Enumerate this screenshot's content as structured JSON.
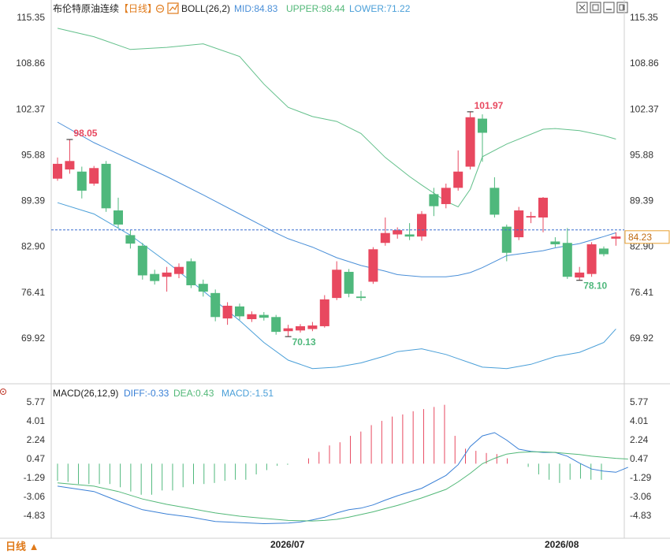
{
  "header": {
    "title": "布伦特原油连续",
    "period": "【日线】",
    "boll_label": "BOLL(26,2)",
    "mid_label": "MID:84.83",
    "upper_label": "UPPER:98.44",
    "lower_label": "LOWER:71.22"
  },
  "toolbar": {
    "icons": [
      "expand-icon",
      "window-icon",
      "minimize-icon",
      "restore-icon"
    ]
  },
  "macd_header": {
    "label": "MACD(26,12,9)",
    "diff_label": "DIFF:-0.33",
    "dea_label": "DEA:0.43",
    "macd_label": "MACD:-1.51"
  },
  "footer": {
    "period_button": "日线 ▲",
    "date_labels": [
      "2026/07",
      "2026/08"
    ]
  },
  "colors": {
    "up": "#e8485f",
    "down": "#4fb87c",
    "mid_line": "#4a8fd8",
    "upper_line": "#63c08b",
    "lower_line": "#4a9fd8",
    "diff_line": "#3a80d6",
    "dea_line": "#52b878",
    "axis_text": "#333333",
    "price_tag": "#e8a030"
  },
  "chart_data": [
    {
      "type": "candlestick",
      "title": "布伦特原油连续",
      "y_ticks": [
        "115.35",
        "108.86",
        "102.37",
        "95.88",
        "89.39",
        "82.90",
        "76.41",
        "69.92"
      ],
      "ylim": [
        65.5,
        116.5
      ],
      "current_price": 84.23,
      "annotations": [
        {
          "label": "98.05",
          "index": 1,
          "value": 98.05,
          "kind": "high"
        },
        {
          "label": "70.13",
          "index": 19,
          "value": 70.13,
          "kind": "low"
        },
        {
          "label": "101.97",
          "index": 34,
          "value": 101.97,
          "kind": "high"
        },
        {
          "label": "78.10",
          "index": 43,
          "value": 78.1,
          "kind": "low"
        }
      ],
      "candles": [
        {
          "o": 92.5,
          "c": 94.6,
          "h": 95.5,
          "l": 92.2
        },
        {
          "o": 93.8,
          "c": 95.0,
          "h": 98.05,
          "l": 93.2
        },
        {
          "o": 93.5,
          "c": 90.8,
          "h": 94.2,
          "l": 89.7
        },
        {
          "o": 91.8,
          "c": 94.0,
          "h": 94.3,
          "l": 91.5
        },
        {
          "o": 94.6,
          "c": 88.3,
          "h": 95.0,
          "l": 87.8
        },
        {
          "o": 88.0,
          "c": 86.0,
          "h": 89.8,
          "l": 85.5
        },
        {
          "o": 84.5,
          "c": 83.3,
          "h": 85.2,
          "l": 82.6
        },
        {
          "o": 83.0,
          "c": 78.8,
          "h": 83.4,
          "l": 78.2
        },
        {
          "o": 79.0,
          "c": 78.0,
          "h": 79.6,
          "l": 77.5
        },
        {
          "o": 78.6,
          "c": 79.2,
          "h": 80.0,
          "l": 76.5
        },
        {
          "o": 79.0,
          "c": 80.0,
          "h": 80.5,
          "l": 78.4
        },
        {
          "o": 80.8,
          "c": 77.4,
          "h": 81.2,
          "l": 77.0
        },
        {
          "o": 77.6,
          "c": 76.5,
          "h": 78.2,
          "l": 75.8
        },
        {
          "o": 76.3,
          "c": 72.9,
          "h": 76.8,
          "l": 72.3
        },
        {
          "o": 72.7,
          "c": 74.5,
          "h": 75.0,
          "l": 71.8
        },
        {
          "o": 74.4,
          "c": 73.0,
          "h": 74.8,
          "l": 72.5
        },
        {
          "o": 72.6,
          "c": 73.3,
          "h": 73.7,
          "l": 72.2
        },
        {
          "o": 73.2,
          "c": 72.8,
          "h": 73.6,
          "l": 72.4
        },
        {
          "o": 72.9,
          "c": 70.8,
          "h": 73.2,
          "l": 70.4
        },
        {
          "o": 70.9,
          "c": 71.3,
          "h": 71.8,
          "l": 70.13
        },
        {
          "o": 71.0,
          "c": 71.6,
          "h": 71.9,
          "l": 70.7
        },
        {
          "o": 71.2,
          "c": 71.7,
          "h": 72.2,
          "l": 70.9
        },
        {
          "o": 71.6,
          "c": 75.4,
          "h": 76.0,
          "l": 71.4
        },
        {
          "o": 75.6,
          "c": 79.6,
          "h": 80.8,
          "l": 75.3
        },
        {
          "o": 79.3,
          "c": 76.2,
          "h": 79.7,
          "l": 75.7
        },
        {
          "o": 75.8,
          "c": 75.6,
          "h": 76.6,
          "l": 75.2
        },
        {
          "o": 77.9,
          "c": 82.5,
          "h": 82.8,
          "l": 77.6
        },
        {
          "o": 83.4,
          "c": 84.8,
          "h": 87.0,
          "l": 83.0
        },
        {
          "o": 84.6,
          "c": 85.2,
          "h": 85.6,
          "l": 84.0
        },
        {
          "o": 84.6,
          "c": 84.3,
          "h": 86.2,
          "l": 83.8
        },
        {
          "o": 84.3,
          "c": 87.5,
          "h": 87.9,
          "l": 83.7
        },
        {
          "o": 90.3,
          "c": 88.6,
          "h": 91.2,
          "l": 87.2
        },
        {
          "o": 88.9,
          "c": 91.2,
          "h": 91.8,
          "l": 88.3
        },
        {
          "o": 91.2,
          "c": 93.5,
          "h": 96.5,
          "l": 90.8
        },
        {
          "o": 94.2,
          "c": 101.2,
          "h": 101.97,
          "l": 93.8
        },
        {
          "o": 101.0,
          "c": 99.0,
          "h": 101.6,
          "l": 94.9
        },
        {
          "o": 91.2,
          "c": 87.4,
          "h": 92.7,
          "l": 87.0
        },
        {
          "o": 85.7,
          "c": 82.0,
          "h": 86.0,
          "l": 80.8
        },
        {
          "o": 84.2,
          "c": 88.0,
          "h": 88.5,
          "l": 83.8
        },
        {
          "o": 87.0,
          "c": 87.2,
          "h": 87.8,
          "l": 86.2
        },
        {
          "o": 87.0,
          "c": 89.8,
          "h": 89.9,
          "l": 84.9
        },
        {
          "o": 83.6,
          "c": 83.2,
          "h": 84.2,
          "l": 82.8
        },
        {
          "o": 83.4,
          "c": 78.6,
          "h": 85.5,
          "l": 78.3
        },
        {
          "o": 78.5,
          "c": 79.2,
          "h": 80.0,
          "l": 78.1
        },
        {
          "o": 79.0,
          "c": 83.2,
          "h": 83.5,
          "l": 78.6
        },
        {
          "o": 82.6,
          "c": 81.8,
          "h": 82.9,
          "l": 81.5
        },
        {
          "o": 84.0,
          "c": 84.3,
          "h": 84.9,
          "l": 83.0
        }
      ],
      "boll_upper": [
        [
          0,
          113.8
        ],
        [
          3,
          112.6
        ],
        [
          6,
          110.8
        ],
        [
          9,
          111.1
        ],
        [
          12,
          111.6
        ],
        [
          15,
          109.8
        ],
        [
          17,
          105.9
        ],
        [
          19,
          102.6
        ],
        [
          21,
          101.3
        ],
        [
          23,
          100.6
        ],
        [
          25,
          98.9
        ],
        [
          27,
          95.5
        ],
        [
          29,
          92.8
        ],
        [
          30,
          91.6
        ],
        [
          32,
          89.3
        ],
        [
          33,
          88.5
        ],
        [
          34,
          91.0
        ],
        [
          35,
          95.6
        ],
        [
          37,
          97.4
        ],
        [
          40,
          99.5
        ],
        [
          41,
          99.6
        ],
        [
          43,
          99.3
        ],
        [
          45,
          98.6
        ],
        [
          46,
          98.1
        ]
      ],
      "boll_mid": [
        [
          0,
          100.5
        ],
        [
          3,
          97.6
        ],
        [
          6,
          95.2
        ],
        [
          9,
          92.8
        ],
        [
          12,
          90.2
        ],
        [
          15,
          87.5
        ],
        [
          17,
          85.7
        ],
        [
          18,
          84.8
        ],
        [
          19,
          84.0
        ],
        [
          21,
          82.8
        ],
        [
          23,
          81.3
        ],
        [
          25,
          80.2
        ],
        [
          27,
          79.4
        ],
        [
          28,
          78.9
        ],
        [
          30,
          78.6
        ],
        [
          32,
          78.6
        ],
        [
          33,
          78.8
        ],
        [
          34,
          79.2
        ],
        [
          35,
          79.9
        ],
        [
          37,
          81.6
        ],
        [
          40,
          82.3
        ],
        [
          41,
          82.7
        ],
        [
          43,
          83.3
        ],
        [
          45,
          84.3
        ],
        [
          46,
          84.83
        ]
      ],
      "boll_lower": [
        [
          0,
          89.1
        ],
        [
          3,
          87.5
        ],
        [
          6,
          84.5
        ],
        [
          9,
          80.7
        ],
        [
          12,
          76.6
        ],
        [
          15,
          72.4
        ],
        [
          17,
          69.3
        ],
        [
          19,
          66.8
        ],
        [
          21,
          65.6
        ],
        [
          23,
          65.8
        ],
        [
          25,
          66.4
        ],
        [
          27,
          67.4
        ],
        [
          28,
          68.0
        ],
        [
          30,
          68.4
        ],
        [
          32,
          67.6
        ],
        [
          33,
          67.0
        ],
        [
          34,
          66.4
        ],
        [
          35,
          65.8
        ],
        [
          37,
          65.6
        ],
        [
          39,
          66.2
        ],
        [
          41,
          67.3
        ],
        [
          43,
          67.9
        ],
        [
          45,
          69.3
        ],
        [
          46,
          71.22
        ]
      ]
    },
    {
      "type": "macd",
      "title": "MACD(26,12,9)",
      "y_ticks": [
        "5.77",
        "4.01",
        "2.24",
        "0.47",
        "-1.29",
        "-3.06",
        "-4.83"
      ],
      "ylim": [
        -6.8,
        6.2
      ],
      "diff": [
        [
          0,
          -2.1
        ],
        [
          3,
          -2.6
        ],
        [
          5,
          -3.5
        ],
        [
          7,
          -4.3
        ],
        [
          9,
          -4.7
        ],
        [
          11,
          -5.0
        ],
        [
          13,
          -5.4
        ],
        [
          15,
          -5.5
        ],
        [
          17,
          -5.6
        ],
        [
          19,
          -5.55
        ],
        [
          20,
          -5.45
        ],
        [
          21,
          -5.25
        ],
        [
          22,
          -5.0
        ],
        [
          23,
          -4.6
        ],
        [
          24,
          -4.3
        ],
        [
          25,
          -4.15
        ],
        [
          26,
          -3.85
        ],
        [
          27,
          -3.4
        ],
        [
          28,
          -3.0
        ],
        [
          30,
          -2.3
        ],
        [
          32,
          -1.1
        ],
        [
          33,
          -0.1
        ],
        [
          34,
          1.6
        ],
        [
          35,
          2.6
        ],
        [
          36,
          2.9
        ],
        [
          37,
          2.2
        ],
        [
          38,
          1.35
        ],
        [
          39,
          1.15
        ],
        [
          40,
          1.05
        ],
        [
          41,
          1.05
        ],
        [
          42,
          0.7
        ],
        [
          43,
          0.05
        ],
        [
          44,
          -0.5
        ],
        [
          45,
          -0.7
        ],
        [
          46,
          -0.8
        ],
        [
          47,
          -0.33
        ]
      ],
      "dea": [
        [
          0,
          -1.8
        ],
        [
          3,
          -2.1
        ],
        [
          5,
          -2.6
        ],
        [
          7,
          -3.3
        ],
        [
          9,
          -3.8
        ],
        [
          11,
          -4.2
        ],
        [
          13,
          -4.6
        ],
        [
          15,
          -4.9
        ],
        [
          17,
          -5.1
        ],
        [
          19,
          -5.3
        ],
        [
          21,
          -5.35
        ],
        [
          22,
          -5.3
        ],
        [
          23,
          -5.2
        ],
        [
          24,
          -5.0
        ],
        [
          25,
          -4.75
        ],
        [
          26,
          -4.5
        ],
        [
          27,
          -4.2
        ],
        [
          28,
          -3.9
        ],
        [
          30,
          -3.2
        ],
        [
          32,
          -2.4
        ],
        [
          33,
          -1.7
        ],
        [
          34,
          -0.9
        ],
        [
          35,
          0.0
        ],
        [
          36,
          0.5
        ],
        [
          37,
          0.9
        ],
        [
          38,
          1.05
        ],
        [
          39,
          1.1
        ],
        [
          40,
          1.1
        ],
        [
          41,
          1.05
        ],
        [
          42,
          0.95
        ],
        [
          43,
          0.85
        ],
        [
          44,
          0.7
        ],
        [
          45,
          0.6
        ],
        [
          46,
          0.5
        ],
        [
          47,
          0.43
        ]
      ],
      "macd_hist": [
        -1.6,
        -1.7,
        -1.9,
        -1.9,
        -1.9,
        -1.9,
        -2.2,
        -2.6,
        -2.9,
        -2.9,
        -2.5,
        -2.5,
        -2.2,
        -1.9,
        -1.9,
        -1.8,
        -1.6,
        -1.5,
        -1.5,
        -1.0,
        -0.6,
        -0.2,
        -0.1,
        0.0,
        0.5,
        1.1,
        1.7,
        2.0,
        2.6,
        3.0,
        3.6,
        4.0,
        4.4,
        4.6,
        4.9,
        5.1,
        5.3,
        5.5,
        2.6,
        1.4,
        1.2,
        1.0,
        0.9,
        0.5,
        0.0,
        -0.3,
        -1.0,
        -1.5,
        -1.8,
        -1.5,
        -1.4,
        -1.5,
        -1.51
      ]
    }
  ]
}
